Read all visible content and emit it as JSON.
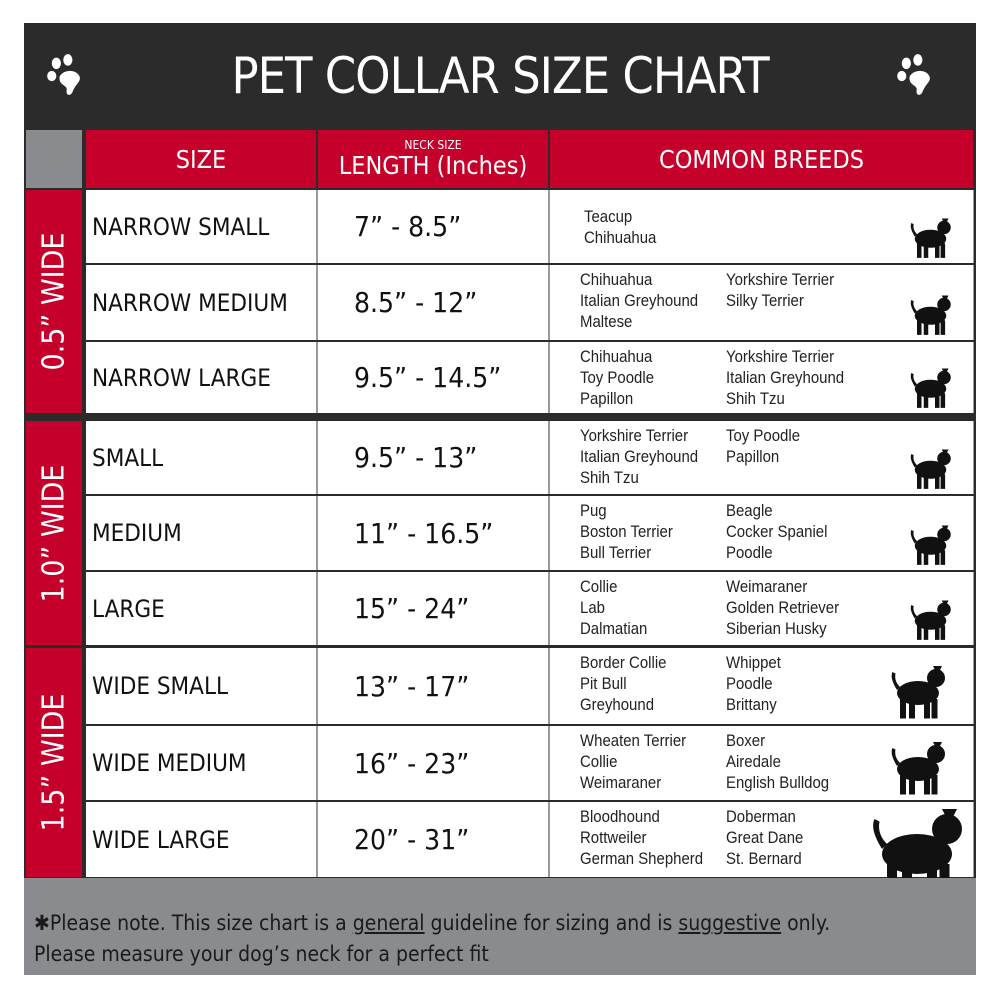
{
  "title": "PET COLLAR SIZE CHART",
  "colors": {
    "header_bg": "#2b2b2b",
    "accent_red": "#c4002b",
    "footer_grey": "#8a8b8e"
  },
  "icons": [
    "paw-icon",
    "dog-silhouette-icon"
  ],
  "headers": {
    "size": "SIZE",
    "length_small": "NECK SIZE",
    "length": "LENGTH (Inches)",
    "breeds": "COMMON BREEDS"
  },
  "groups": [
    {
      "label": "0.5” WIDE"
    },
    {
      "label": "1.0” WIDE"
    },
    {
      "label": "1.5” WIDE"
    }
  ],
  "rows": [
    {
      "size": "NARROW SMALL",
      "length": "7” - 8.5”",
      "breeds_left": [
        "Teacup",
        "Chihuahua"
      ],
      "breeds_right": []
    },
    {
      "size": "NARROW MEDIUM",
      "length": "8.5” - 12”",
      "breeds_left": [
        "Chihuahua",
        "Italian Greyhound",
        "Maltese"
      ],
      "breeds_right": [
        "Yorkshire Terrier",
        "Silky Terrier"
      ]
    },
    {
      "size": "NARROW LARGE",
      "length": "9.5” - 14.5”",
      "breeds_left": [
        "Chihuahua",
        "Toy Poodle",
        "Papillon"
      ],
      "breeds_right": [
        "Yorkshire Terrier",
        "Italian Greyhound",
        "Shih Tzu"
      ]
    },
    {
      "size": "SMALL",
      "length": "9.5” - 13”",
      "breeds_left": [
        "Yorkshire Terrier",
        "Italian Greyhound",
        "Shih Tzu"
      ],
      "breeds_right": [
        "Toy Poodle",
        "Papillon"
      ]
    },
    {
      "size": "MEDIUM",
      "length": "11” - 16.5”",
      "breeds_left": [
        "Pug",
        "Boston Terrier",
        "Bull Terrier"
      ],
      "breeds_right": [
        "Beagle",
        "Cocker Spaniel",
        "Poodle"
      ]
    },
    {
      "size": "LARGE",
      "length": "15” - 24”",
      "breeds_left": [
        "Collie",
        "Lab",
        "Dalmatian"
      ],
      "breeds_right": [
        "Weimaraner",
        "Golden Retriever",
        "Siberian Husky"
      ]
    },
    {
      "size": "WIDE SMALL",
      "length": "13” - 17”",
      "breeds_left": [
        "Border Collie",
        "Pit Bull",
        "Greyhound"
      ],
      "breeds_right": [
        "Whippet",
        "Poodle",
        "Brittany"
      ]
    },
    {
      "size": "WIDE MEDIUM",
      "length": "16” - 23”",
      "breeds_left": [
        "Wheaten Terrier",
        "Collie",
        "Weimaraner"
      ],
      "breeds_right": [
        "Boxer",
        "Airedale",
        "English Bulldog"
      ]
    },
    {
      "size": "WIDE LARGE",
      "length": "20” - 31”",
      "breeds_left": [
        "Bloodhound",
        "Rottweiler",
        "German Shepherd"
      ],
      "breeds_right": [
        "Doberman",
        "Great Dane",
        "St. Bernard"
      ]
    }
  ],
  "footer": {
    "prefix": "✱Please note. This size chart is a ",
    "general": "general",
    "mid": " guideline for sizing and is ",
    "suggestive": "suggestive",
    "suffix": " only.",
    "line2": "Please measure your dog’s neck for a perfect fit"
  }
}
